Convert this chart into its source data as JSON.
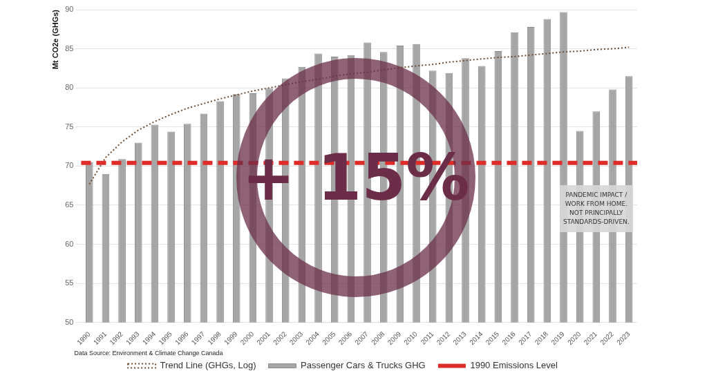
{
  "chart_data": {
    "type": "bar",
    "ylabel": "Mt CO2e (GHGs)",
    "categories": [
      "1990",
      "1991",
      "1992",
      "1993",
      "1994",
      "1995",
      "1996",
      "1997",
      "1998",
      "1999",
      "2000",
      "2001",
      "2002",
      "2003",
      "2004",
      "2005",
      "2006",
      "2007",
      "2008",
      "2009",
      "2010",
      "2011",
      "2012",
      "2013",
      "2014",
      "2015",
      "2016",
      "2017",
      "2018",
      "2019",
      "2020",
      "2021",
      "2022",
      "2023"
    ],
    "series": [
      {
        "name": "Passenger Cars & Trucks GHG",
        "color": "#a6a6a6",
        "values": [
          70.5,
          69.0,
          70.9,
          73.0,
          75.3,
          74.4,
          75.4,
          76.7,
          78.3,
          79.2,
          79.3,
          79.9,
          81.2,
          82.7,
          84.4,
          84.0,
          84.2,
          85.8,
          84.6,
          85.4,
          85.6,
          82.2,
          81.9,
          83.8,
          82.8,
          84.7,
          87.1,
          87.8,
          88.8,
          89.7,
          74.5,
          77.0,
          79.8,
          81.5
        ]
      },
      {
        "name": "Trend Line (GHGs, Log)",
        "type": "line",
        "color": "#6e4a2e",
        "line_style": "dotted",
        "marker": "none",
        "values": [
          67.7,
          71.1,
          73.1,
          74.6,
          75.7,
          76.6,
          77.4,
          78.0,
          78.6,
          79.1,
          79.6,
          80.0,
          80.4,
          80.8,
          81.1,
          81.5,
          81.8,
          82.0,
          82.3,
          82.6,
          82.8,
          83.0,
          83.3,
          83.5,
          83.7,
          83.9,
          84.0,
          84.2,
          84.4,
          84.6,
          84.7,
          84.9,
          85.0,
          85.2
        ]
      }
    ],
    "ylim": [
      50,
      90
    ],
    "yticks": [
      50,
      55,
      60,
      65,
      70,
      75,
      80,
      85,
      90
    ],
    "grid": "y",
    "legend": "bottom",
    "ref_lines": [
      {
        "axis": "y",
        "value": 70.4,
        "label": "1990 Emissions Level",
        "color": "#e02b2b",
        "line_style": "dashed"
      }
    ],
    "annotations": [
      "+ 15%",
      {
        "text": "PANDEMIC IMPACT / WORK FROM HOME. NOT PRINCIPALLY STANDARDS-DRIVEN.",
        "x": "2021",
        "y": 64
      },
      "Data Source: Environment & Climate Change Canada"
    ]
  }
}
